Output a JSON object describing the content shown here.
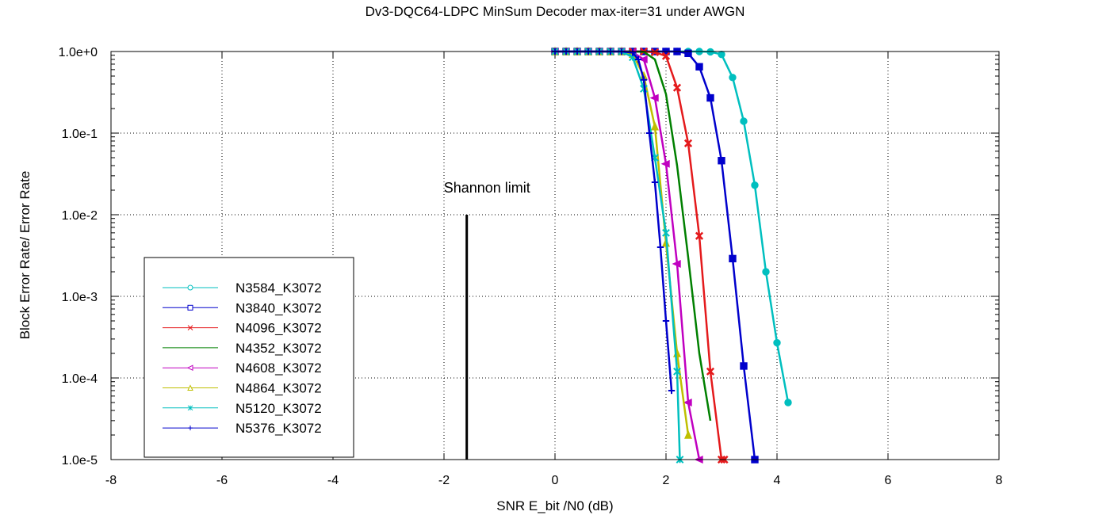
{
  "chart_data": {
    "type": "line",
    "title": "Dv3-DQC64-LDPC MinSum Decoder max-iter=31 under AWGN",
    "xlabel": "SNR E_bit /N0 (dB)",
    "ylabel": "Block Error Rate/ Error Rate",
    "xlim": [
      -8,
      8
    ],
    "ylim": [
      1e-05,
      1
    ],
    "y_scale": "log",
    "grid": true,
    "legend_position": "bottom-left",
    "x_ticks": [
      "-8",
      "-6",
      "-4",
      "-2",
      "0",
      "2",
      "4",
      "6",
      "8"
    ],
    "x_tick_values": [
      -8,
      -6,
      -4,
      -2,
      0,
      2,
      4,
      6,
      8
    ],
    "y_ticks": [
      "1.0e+0",
      "1.0e-1",
      "1.0e-2",
      "1.0e-3",
      "1.0e-4",
      "1.0e-5"
    ],
    "y_tick_values": [
      1,
      0.1,
      0.01,
      0.001,
      0.0001,
      1e-05
    ],
    "annotation": {
      "text": "Shannon limit",
      "x": -1.59,
      "y_from": 1e-05,
      "y_to": 0.01
    },
    "series": [
      {
        "name": "N3584_K3072",
        "color": "#00bfbf",
        "marker": "circle",
        "x": [
          0.0,
          0.2,
          0.4,
          0.6,
          0.8,
          1.0,
          1.2,
          1.4,
          1.6,
          1.8,
          2.0,
          2.2,
          2.4,
          2.6,
          2.8,
          3.0,
          3.2,
          3.4,
          3.6,
          3.8,
          4.0,
          4.2
        ],
        "y": [
          1,
          1,
          1,
          1,
          1,
          1,
          1,
          1,
          1,
          1,
          1,
          1,
          1,
          1,
          0.99,
          0.92,
          0.48,
          0.14,
          0.023,
          0.002,
          0.00027,
          5e-05
        ]
      },
      {
        "name": "N3840_K3072",
        "color": "#0000cc",
        "marker": "square",
        "x": [
          0.0,
          0.2,
          0.4,
          0.6,
          0.8,
          1.0,
          1.2,
          1.4,
          1.6,
          1.8,
          2.0,
          2.2,
          2.4,
          2.6,
          2.8,
          3.0,
          3.2,
          3.4,
          3.6
        ],
        "y": [
          1,
          1,
          1,
          1,
          1,
          1,
          1,
          1,
          1,
          1,
          1,
          1,
          0.95,
          0.65,
          0.27,
          0.046,
          0.0029,
          0.00014,
          1e-05
        ]
      },
      {
        "name": "N4096_K3072",
        "color": "#e41a1c",
        "marker": "x",
        "x": [
          0.0,
          0.2,
          0.4,
          0.6,
          0.8,
          1.0,
          1.2,
          1.4,
          1.6,
          1.8,
          2.0,
          2.2,
          2.4,
          2.6,
          2.8,
          3.0,
          3.05
        ],
        "y": [
          1,
          1,
          1,
          1,
          1,
          1,
          1,
          1,
          1,
          0.98,
          0.88,
          0.36,
          0.075,
          0.0055,
          0.00012,
          1e-05,
          1e-05
        ]
      },
      {
        "name": "N4352_K3072",
        "color": "#008000",
        "marker": "none",
        "x": [
          0.0,
          0.2,
          0.4,
          0.6,
          0.8,
          1.0,
          1.2,
          1.4,
          1.6,
          1.8,
          2.0,
          2.2,
          2.4,
          2.6,
          2.8
        ],
        "y": [
          1,
          1,
          1,
          1,
          1,
          1,
          1,
          1,
          0.99,
          0.8,
          0.3,
          0.04,
          0.003,
          0.0002,
          3e-05
        ]
      },
      {
        "name": "N4608_K3072",
        "color": "#c000c0",
        "marker": "triangle-left",
        "x": [
          0.0,
          0.2,
          0.4,
          0.6,
          0.8,
          1.0,
          1.2,
          1.4,
          1.6,
          1.8,
          2.0,
          2.2,
          2.4,
          2.6
        ],
        "y": [
          1,
          1,
          1,
          1,
          1,
          1,
          1,
          0.98,
          0.8,
          0.27,
          0.042,
          0.0025,
          5e-05,
          1e-05
        ]
      },
      {
        "name": "N4864_K3072",
        "color": "#bfbf00",
        "marker": "triangle-up",
        "x": [
          0.0,
          0.2,
          0.4,
          0.6,
          0.8,
          1.0,
          1.2,
          1.4,
          1.6,
          1.8,
          2.0,
          2.2,
          2.4
        ],
        "y": [
          1,
          1,
          1,
          1,
          1,
          1,
          1,
          0.93,
          0.5,
          0.12,
          0.0045,
          0.0002,
          2e-05
        ]
      },
      {
        "name": "N5120_K3072",
        "color": "#00bfbf",
        "marker": "asterisk",
        "x": [
          0.0,
          0.2,
          0.4,
          0.6,
          0.8,
          1.0,
          1.2,
          1.4,
          1.6,
          1.8,
          2.0,
          2.2,
          2.25
        ],
        "y": [
          1,
          1,
          1,
          1,
          1,
          1,
          1,
          0.85,
          0.35,
          0.05,
          0.006,
          0.00012,
          1e-05
        ]
      },
      {
        "name": "N5376_K3072",
        "color": "#0000cc",
        "marker": "plus",
        "x": [
          0.0,
          0.2,
          0.4,
          0.6,
          0.8,
          1.0,
          1.2,
          1.4,
          1.5,
          1.6,
          1.7,
          1.8,
          1.9,
          2.0,
          2.1
        ],
        "y": [
          1,
          1,
          1,
          1,
          1,
          1,
          1,
          0.97,
          0.8,
          0.45,
          0.1,
          0.025,
          0.004,
          0.0005,
          7e-05
        ]
      }
    ]
  }
}
